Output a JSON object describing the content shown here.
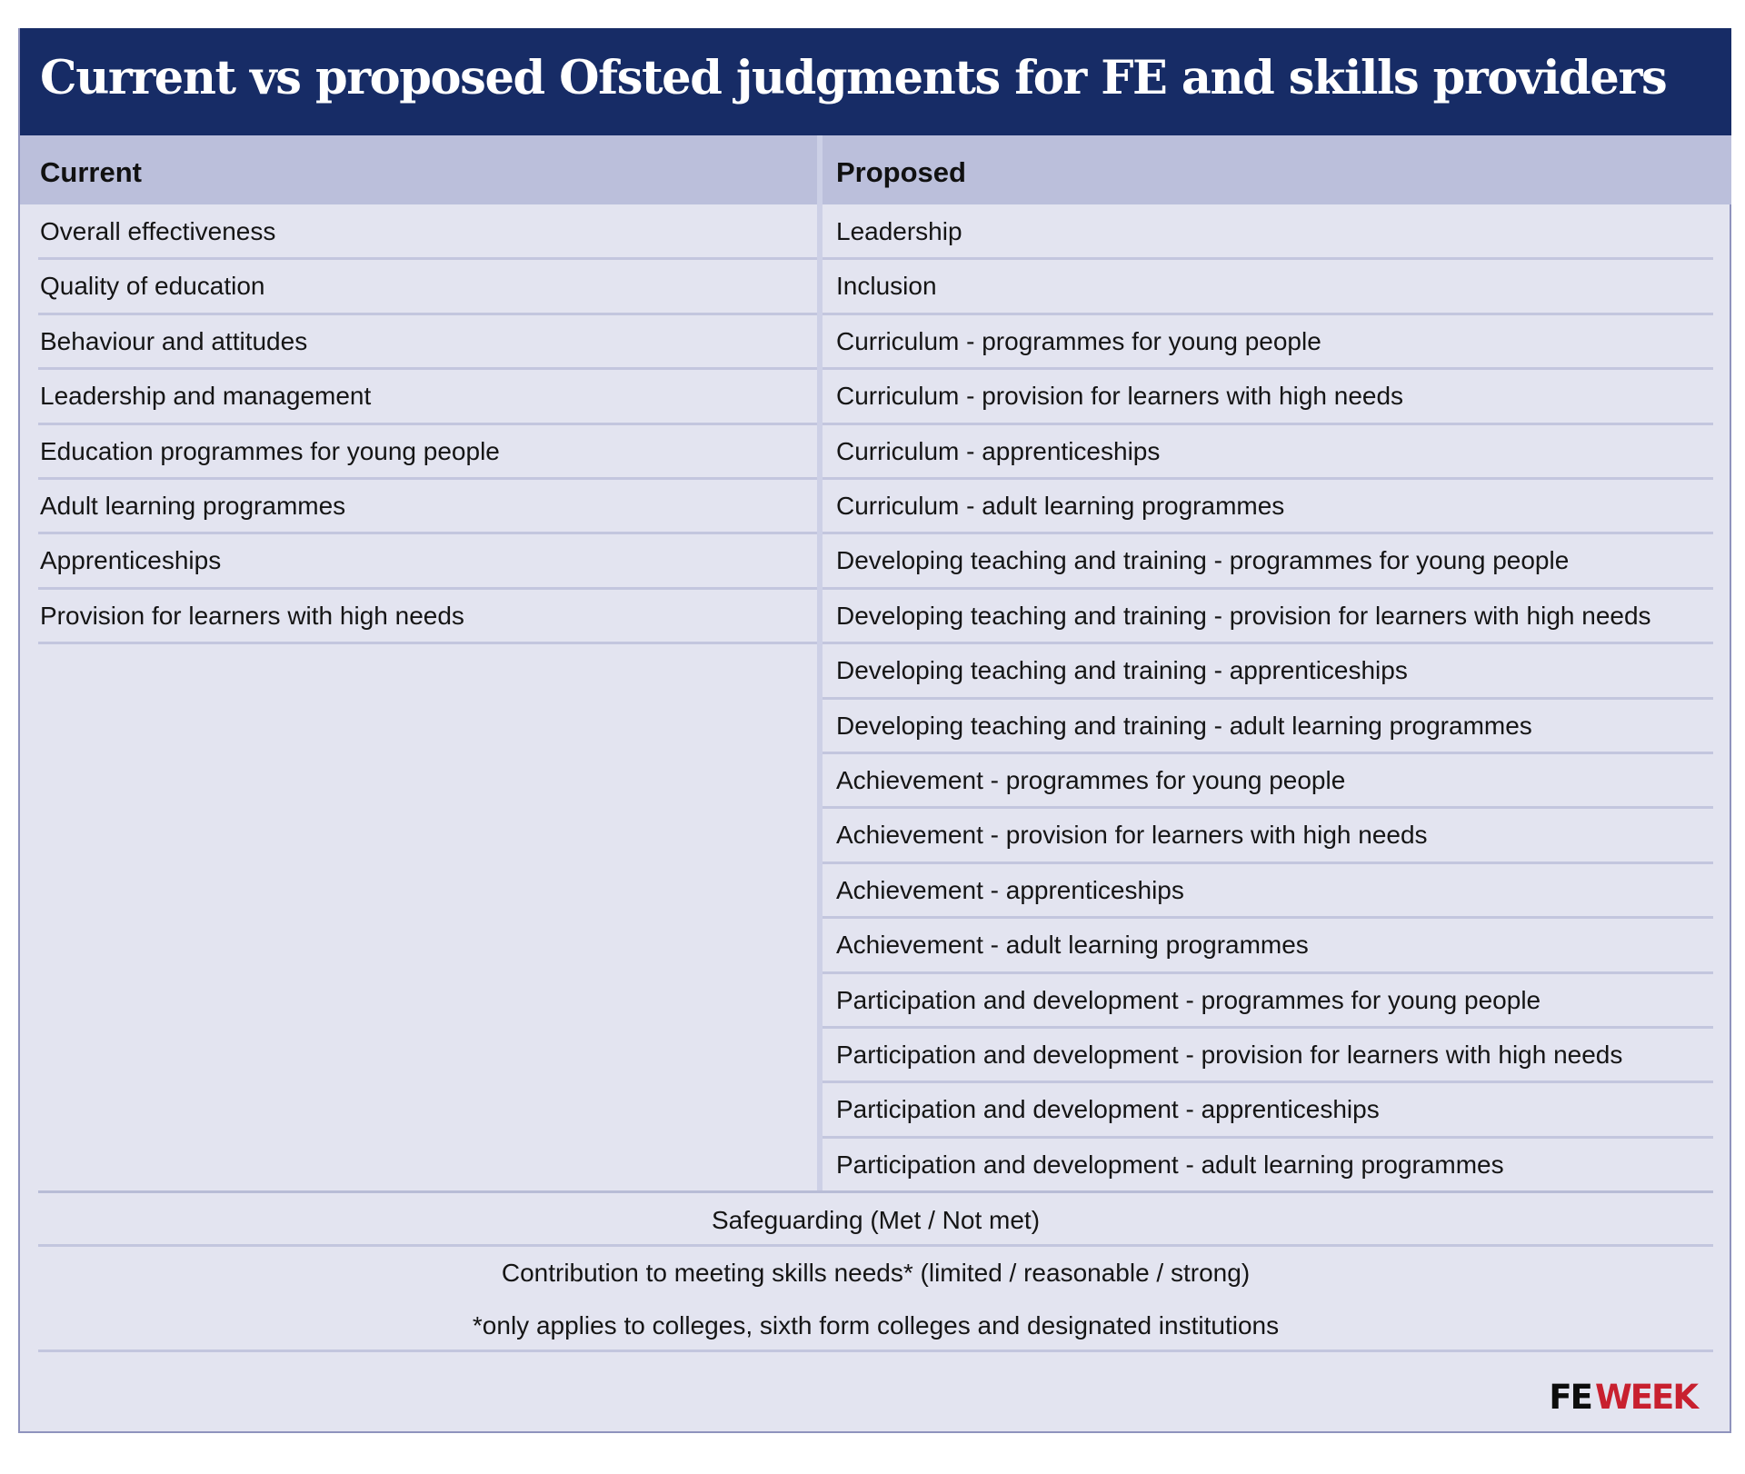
{
  "title": "Current vs proposed Ofsted judgments for FE and skills providers",
  "table": {
    "headers": [
      "Current",
      "Proposed"
    ],
    "current": [
      "Overall effectiveness",
      "Quality of education",
      "Behaviour and attitudes",
      "Leadership and management",
      "Education programmes for young people",
      "Adult learning programmes",
      "Apprenticeships",
      "Provision for learners with high needs"
    ],
    "proposed": [
      "Leadership",
      "Inclusion",
      "Curriculum - programmes for young people",
      "Curriculum - provision for learners with high needs",
      "Curriculum - apprenticeships",
      "Curriculum - adult learning programmes",
      "Developing teaching and training - programmes for young people",
      "Developing teaching and training - provision for learners with high needs",
      "Developing teaching and training - apprenticeships",
      "Developing teaching and training - adult learning programmes",
      "Achievement - programmes for young people",
      "Achievement - provision for learners with high needs",
      "Achievement - apprenticeships",
      "Achievement - adult learning programmes",
      "Participation and development - programmes for young people",
      "Participation and development - provision for learners with high needs",
      "Participation and development - apprenticeships",
      "Participation and development - adult learning programmes"
    ]
  },
  "footer": {
    "safeguarding": "Safeguarding (Met / Not met)",
    "contribution": "Contribution to meeting skills needs* (limited / reasonable / strong)",
    "note": "*only applies to colleges, sixth form colleges and designated institutions"
  },
  "logo": {
    "fe": "FE",
    "week": "WEEK"
  },
  "colors": {
    "banner": "#172c66",
    "header_row": "#bbbfdb",
    "body": "#e3e4f0",
    "logo_red": "#c8202f"
  }
}
